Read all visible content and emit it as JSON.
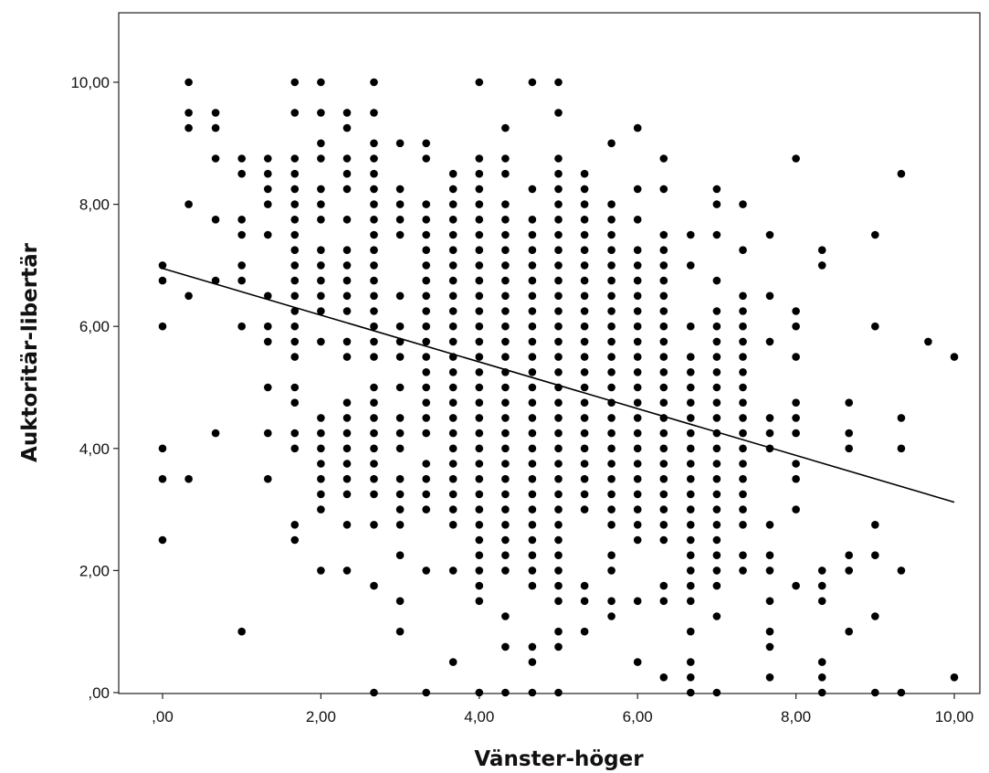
{
  "chart_data": {
    "type": "scatter",
    "title": "",
    "xlabel": "Vänster-höger",
    "ylabel": "Auktoritär-libertär",
    "xlim": [
      -0.5,
      10.4
    ],
    "ylim": [
      0,
      11
    ],
    "x_ticks": [
      0,
      2,
      4,
      6,
      8,
      10
    ],
    "x_tick_labels": [
      ",00",
      "2,00",
      "4,00",
      "6,00",
      "8,00",
      "10,00"
    ],
    "y_ticks": [
      0,
      2,
      4,
      6,
      8,
      10
    ],
    "y_tick_labels": [
      ",00",
      "2,00",
      "4,00",
      "6,00",
      "8,00",
      "10,00"
    ],
    "grid": false,
    "legend": "none",
    "point_color": "#000000",
    "fit_line": {
      "type": "linear",
      "x": [
        0,
        10
      ],
      "y": [
        6.95,
        3.12
      ]
    },
    "columns": [
      {
        "x": 0.0,
        "y": [
          7.0,
          6.75,
          6.0,
          4.0,
          3.5,
          2.5
        ]
      },
      {
        "x": 0.33,
        "y": [
          10.0,
          9.5,
          9.25,
          8.0,
          6.5,
          3.5
        ]
      },
      {
        "x": 0.67,
        "y": [
          9.5,
          9.25,
          8.75,
          7.75,
          6.75,
          4.25
        ]
      },
      {
        "x": 1.0,
        "y": [
          8.75,
          8.5,
          7.75,
          7.5,
          7.0,
          6.75,
          6.0,
          1.0
        ]
      },
      {
        "x": 1.33,
        "y": [
          8.75,
          8.5,
          8.25,
          8.0,
          7.5,
          6.5,
          6.0,
          5.75,
          5.0,
          4.25,
          3.5
        ]
      },
      {
        "x": 1.67,
        "y": [
          10.0,
          9.5,
          8.75,
          8.5,
          8.25,
          8.0,
          7.75,
          7.5,
          7.25,
          7.0,
          6.75,
          6.5,
          6.25,
          6.0,
          5.75,
          5.5,
          5.0,
          4.75,
          4.25,
          4.0,
          2.75,
          2.5
        ]
      },
      {
        "x": 2.0,
        "y": [
          10.0,
          9.5,
          9.0,
          8.75,
          8.25,
          8.0,
          7.75,
          7.25,
          7.0,
          6.75,
          6.5,
          6.25,
          5.75,
          4.5,
          4.25,
          4.0,
          3.75,
          3.5,
          3.25,
          3.0,
          2.0
        ]
      },
      {
        "x": 2.33,
        "y": [
          9.5,
          9.25,
          8.75,
          8.5,
          8.25,
          7.75,
          7.25,
          7.0,
          6.75,
          6.5,
          6.25,
          5.75,
          5.5,
          4.75,
          4.5,
          4.25,
          4.0,
          3.75,
          3.5,
          3.25,
          2.75,
          2.0
        ]
      },
      {
        "x": 2.67,
        "y": [
          10.0,
          9.5,
          9.0,
          8.75,
          8.5,
          8.25,
          8.0,
          7.75,
          7.5,
          7.25,
          7.0,
          6.75,
          6.5,
          6.25,
          6.0,
          5.75,
          5.5,
          5.0,
          4.75,
          4.5,
          4.25,
          4.0,
          3.75,
          3.5,
          3.25,
          2.75,
          1.75,
          0.0
        ]
      },
      {
        "x": 3.0,
        "y": [
          9.0,
          8.25,
          8.0,
          7.75,
          7.5,
          6.5,
          6.0,
          5.75,
          5.5,
          5.0,
          4.5,
          4.25,
          4.0,
          3.5,
          3.25,
          3.0,
          2.75,
          2.25,
          1.5,
          1.0
        ]
      },
      {
        "x": 3.33,
        "y": [
          9.0,
          8.75,
          8.0,
          7.75,
          7.5,
          7.25,
          7.0,
          6.75,
          6.5,
          6.25,
          6.0,
          5.75,
          5.5,
          5.25,
          5.0,
          4.75,
          4.5,
          4.25,
          3.75,
          3.5,
          3.25,
          3.0,
          2.0,
          0.0
        ]
      },
      {
        "x": 3.67,
        "y": [
          8.5,
          8.25,
          8.0,
          7.75,
          7.5,
          7.25,
          7.0,
          6.75,
          6.5,
          6.25,
          6.0,
          5.75,
          5.5,
          5.25,
          5.0,
          4.75,
          4.5,
          4.25,
          4.0,
          3.75,
          3.5,
          3.25,
          3.0,
          2.75,
          2.0,
          0.5
        ]
      },
      {
        "x": 4.0,
        "y": [
          10.0,
          8.75,
          8.5,
          8.25,
          8.0,
          7.75,
          7.5,
          7.25,
          7.0,
          6.75,
          6.5,
          6.25,
          6.0,
          5.75,
          5.5,
          5.25,
          5.0,
          4.75,
          4.5,
          4.25,
          4.0,
          3.75,
          3.5,
          3.25,
          3.0,
          2.75,
          2.5,
          2.25,
          2.0,
          1.75,
          1.5,
          0.0
        ]
      },
      {
        "x": 4.33,
        "y": [
          9.25,
          8.75,
          8.5,
          8.0,
          7.75,
          7.5,
          7.25,
          7.0,
          6.75,
          6.5,
          6.25,
          6.0,
          5.75,
          5.5,
          5.25,
          5.0,
          4.75,
          4.5,
          4.25,
          4.0,
          3.75,
          3.5,
          3.25,
          3.0,
          2.75,
          2.5,
          2.25,
          2.0,
          1.25,
          0.75,
          0.0
        ]
      },
      {
        "x": 4.67,
        "y": [
          10.0,
          8.25,
          7.75,
          7.5,
          7.25,
          7.0,
          6.75,
          6.5,
          6.25,
          6.0,
          5.75,
          5.5,
          5.25,
          5.0,
          4.75,
          4.5,
          4.25,
          4.0,
          3.75,
          3.5,
          3.25,
          3.0,
          2.75,
          2.5,
          2.25,
          2.0,
          1.75,
          0.75,
          0.5,
          0.0
        ]
      },
      {
        "x": 5.0,
        "y": [
          10.0,
          9.5,
          8.75,
          8.5,
          8.25,
          8.0,
          7.75,
          7.5,
          7.25,
          7.0,
          6.75,
          6.5,
          6.25,
          6.0,
          5.75,
          5.5,
          5.25,
          5.0,
          4.75,
          4.5,
          4.25,
          4.0,
          3.75,
          3.5,
          3.25,
          3.0,
          2.75,
          2.5,
          2.25,
          2.0,
          1.75,
          1.5,
          1.0,
          0.75,
          0.0
        ]
      },
      {
        "x": 5.33,
        "y": [
          8.5,
          8.25,
          8.0,
          7.75,
          7.5,
          7.25,
          7.0,
          6.75,
          6.5,
          6.25,
          6.0,
          5.75,
          5.5,
          5.25,
          5.0,
          4.75,
          4.5,
          4.25,
          4.0,
          3.75,
          3.5,
          3.25,
          3.0,
          1.75,
          1.5,
          1.0
        ]
      },
      {
        "x": 5.67,
        "y": [
          9.0,
          8.0,
          7.75,
          7.5,
          7.25,
          7.0,
          6.75,
          6.5,
          6.25,
          6.0,
          5.75,
          5.5,
          5.25,
          5.0,
          4.75,
          4.5,
          4.25,
          4.0,
          3.75,
          3.5,
          3.25,
          3.0,
          2.75,
          2.25,
          2.0,
          1.5,
          1.25
        ]
      },
      {
        "x": 6.0,
        "y": [
          9.25,
          8.25,
          7.75,
          7.25,
          7.0,
          6.75,
          6.5,
          6.25,
          6.0,
          5.75,
          5.5,
          5.25,
          5.0,
          4.75,
          4.5,
          4.25,
          4.0,
          3.75,
          3.5,
          3.25,
          3.0,
          2.75,
          2.5,
          1.5,
          0.5
        ]
      },
      {
        "x": 6.33,
        "y": [
          8.75,
          8.25,
          7.5,
          7.25,
          7.0,
          6.75,
          6.5,
          6.25,
          6.0,
          5.75,
          5.5,
          5.25,
          5.0,
          4.75,
          4.5,
          4.25,
          4.0,
          3.75,
          3.5,
          3.25,
          3.0,
          2.75,
          2.5,
          1.75,
          1.5,
          0.25
        ]
      },
      {
        "x": 6.67,
        "y": [
          7.5,
          7.0,
          6.0,
          5.5,
          5.25,
          5.0,
          4.75,
          4.5,
          4.25,
          4.0,
          3.75,
          3.5,
          3.25,
          3.0,
          2.75,
          2.5,
          2.25,
          2.0,
          1.75,
          1.5,
          1.0,
          0.5,
          0.25,
          0.0
        ]
      },
      {
        "x": 7.0,
        "y": [
          8.25,
          8.0,
          7.5,
          6.75,
          6.25,
          6.0,
          5.75,
          5.5,
          5.25,
          5.0,
          4.75,
          4.5,
          4.25,
          4.0,
          3.75,
          3.5,
          3.25,
          3.0,
          2.75,
          2.5,
          2.25,
          2.0,
          1.75,
          1.25,
          0.0
        ]
      },
      {
        "x": 7.33,
        "y": [
          8.0,
          7.25,
          6.5,
          6.25,
          6.0,
          5.75,
          5.5,
          5.25,
          5.0,
          4.75,
          4.5,
          4.25,
          4.0,
          3.75,
          3.5,
          3.25,
          3.0,
          2.75,
          2.25,
          2.0
        ]
      },
      {
        "x": 7.67,
        "y": [
          7.5,
          6.5,
          5.75,
          4.5,
          4.25,
          4.0,
          2.75,
          2.25,
          2.0,
          1.5,
          1.0,
          0.75,
          0.25
        ]
      },
      {
        "x": 8.0,
        "y": [
          8.75,
          6.25,
          6.0,
          5.5,
          4.75,
          4.5,
          4.25,
          3.75,
          3.5,
          3.0,
          1.75
        ]
      },
      {
        "x": 8.33,
        "y": [
          7.25,
          7.0,
          2.0,
          1.75,
          1.5,
          0.5,
          0.25,
          0.0
        ]
      },
      {
        "x": 8.67,
        "y": [
          4.75,
          4.25,
          4.0,
          2.25,
          2.0,
          1.0
        ]
      },
      {
        "x": 9.0,
        "y": [
          7.5,
          6.0,
          2.75,
          2.25,
          1.25,
          0.0
        ]
      },
      {
        "x": 9.33,
        "y": [
          8.5,
          4.5,
          4.0,
          2.0,
          0.0
        ]
      },
      {
        "x": 9.67,
        "y": [
          5.75
        ]
      },
      {
        "x": 10.0,
        "y": [
          5.5,
          0.25
        ]
      }
    ]
  }
}
